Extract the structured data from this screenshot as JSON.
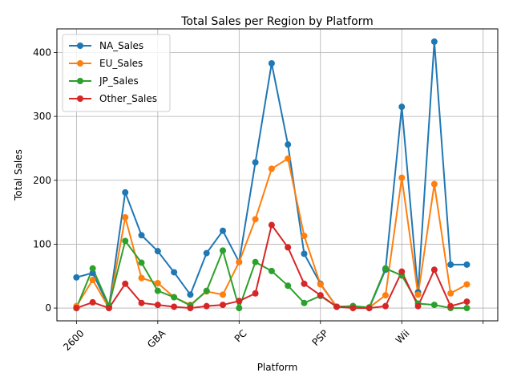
{
  "chart_data": {
    "type": "line",
    "title": "Total Sales per Region by Platform",
    "xlabel": "Platform",
    "ylabel": "Total Sales",
    "x": [
      0,
      1,
      2,
      3,
      4,
      5,
      6,
      7,
      8,
      9,
      10,
      11,
      12,
      13,
      14,
      15,
      16,
      17,
      18,
      19,
      20,
      21,
      22,
      23,
      24,
      25
    ],
    "xticks": [
      0,
      5,
      10,
      15,
      20,
      25
    ],
    "xtick_labels": [
      "2600",
      "GBA",
      "PC",
      "PSP",
      "Wii",
      ""
    ],
    "xlim": [
      -1.2,
      25.9
    ],
    "ylim": [
      -20,
      437
    ],
    "yticks": [
      0,
      100,
      200,
      300,
      400
    ],
    "grid": true,
    "legend_position": "top-left",
    "series": [
      {
        "name": "NA_Sales",
        "color": "#1f77b4",
        "values": [
          48,
          55,
          2,
          181,
          114,
          89,
          56,
          21,
          86,
          121,
          72,
          228,
          383,
          256,
          85,
          38,
          2,
          3,
          0,
          60,
          315,
          25,
          417,
          68,
          68,
          null
        ]
      },
      {
        "name": "EU_Sales",
        "color": "#ff7f0e",
        "values": [
          3,
          44,
          0,
          142,
          47,
          39,
          17,
          5,
          26,
          21,
          72,
          139,
          218,
          234,
          113,
          37,
          2,
          2,
          1,
          20,
          204,
          21,
          194,
          23,
          37,
          null
        ]
      },
      {
        "name": "JP_Sales",
        "color": "#2ca02c",
        "values": [
          0,
          62,
          4,
          105,
          71,
          27,
          17,
          4,
          27,
          90,
          0,
          72,
          58,
          35,
          8,
          19,
          2,
          3,
          1,
          62,
          51,
          7,
          5,
          0,
          0,
          null
        ]
      },
      {
        "name": "Other_Sales",
        "color": "#d62728",
        "values": [
          0,
          9,
          0,
          38,
          8,
          5,
          2,
          0,
          3,
          5,
          11,
          23,
          130,
          95,
          38,
          20,
          2,
          0,
          0,
          3,
          57,
          3,
          60,
          3,
          10,
          null
        ]
      }
    ]
  }
}
